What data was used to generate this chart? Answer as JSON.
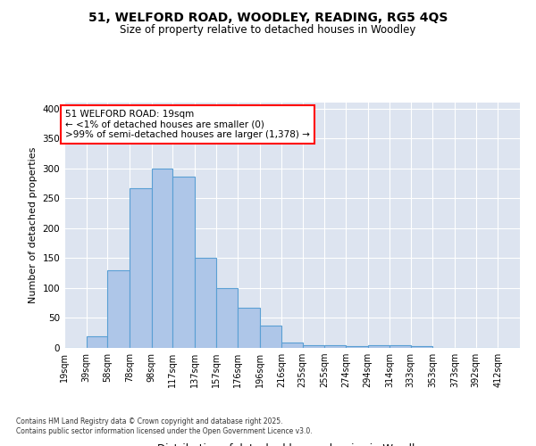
{
  "title1": "51, WELFORD ROAD, WOODLEY, READING, RG5 4QS",
  "title2": "Size of property relative to detached houses in Woodley",
  "xlabel": "Distribution of detached houses by size in Woodley",
  "ylabel": "Number of detached properties",
  "bins": [
    "19sqm",
    "39sqm",
    "58sqm",
    "78sqm",
    "98sqm",
    "117sqm",
    "137sqm",
    "157sqm",
    "176sqm",
    "196sqm",
    "216sqm",
    "235sqm",
    "255sqm",
    "274sqm",
    "294sqm",
    "314sqm",
    "333sqm",
    "353sqm",
    "373sqm",
    "392sqm",
    "412sqm"
  ],
  "bin_edges": [
    19,
    39,
    58,
    78,
    98,
    117,
    137,
    157,
    176,
    196,
    216,
    235,
    255,
    274,
    294,
    314,
    333,
    353,
    373,
    392,
    412
  ],
  "bar_values": [
    0,
    20,
    130,
    267,
    300,
    287,
    150,
    100,
    67,
    37,
    9,
    5,
    5,
    3,
    5,
    4,
    3,
    0,
    0,
    0,
    0
  ],
  "bar_color": "#aec6e8",
  "bar_edge_color": "#5a9fd4",
  "annotation_text": "51 WELFORD ROAD: 19sqm\n← <1% of detached houses are smaller (0)\n>99% of semi-detached houses are larger (1,378) →",
  "ylim": [
    0,
    410
  ],
  "yticks": [
    0,
    50,
    100,
    150,
    200,
    250,
    300,
    350,
    400
  ],
  "bg_color": "#dde4f0",
  "grid_color": "#ffffff",
  "footer1": "Contains HM Land Registry data © Crown copyright and database right 2025.",
  "footer2": "Contains public sector information licensed under the Open Government Licence v3.0."
}
